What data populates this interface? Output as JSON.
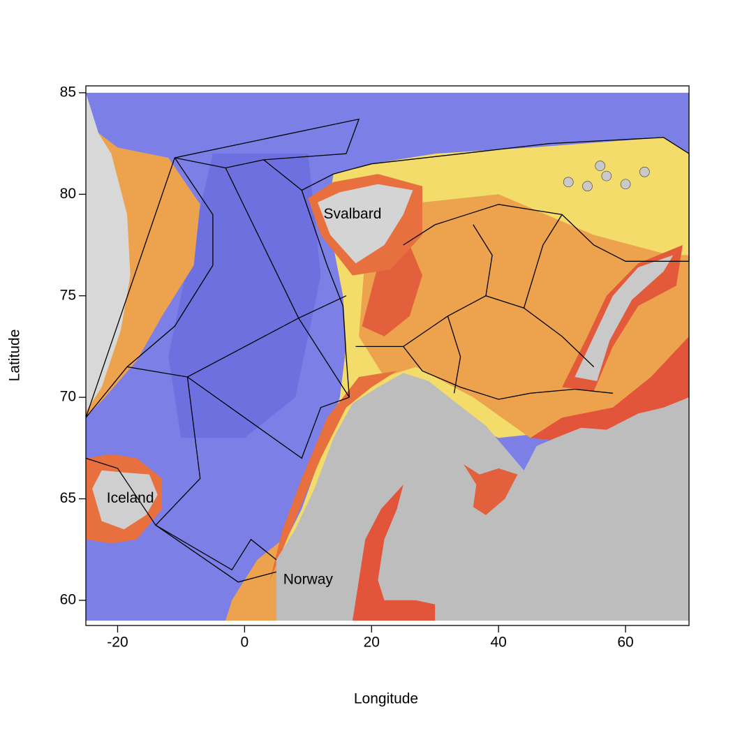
{
  "chart_data": {
    "type": "map",
    "xlabel": "Longitude",
    "ylabel": "Latitude",
    "xlim": [
      -25,
      70
    ],
    "ylim": [
      58.76,
      85.34
    ],
    "xticks": [
      -20,
      0,
      20,
      40,
      60
    ],
    "yticks": [
      60,
      65,
      70,
      75,
      80,
      85
    ],
    "annotations": [
      {
        "text": "Svalbard",
        "x": 17,
        "y": 79
      },
      {
        "text": "Iceland",
        "x": -18,
        "y": 65
      },
      {
        "text": "Norway",
        "x": 10,
        "y": 61
      }
    ]
  }
}
